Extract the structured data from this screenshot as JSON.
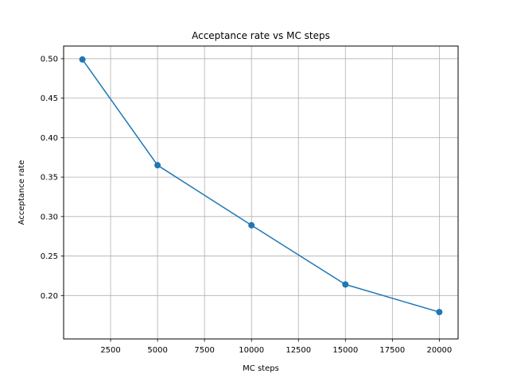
{
  "chart_data": {
    "type": "line",
    "title": "Acceptance rate vs MC steps",
    "xlabel": "MC steps",
    "ylabel": "Acceptance rate",
    "xlim": [
      0,
      21000
    ],
    "ylim": [
      0.145,
      0.516
    ],
    "x_ticks": [
      2500,
      5000,
      7500,
      10000,
      12500,
      15000,
      17500,
      20000
    ],
    "y_ticks": [
      0.2,
      0.25,
      0.3,
      0.35,
      0.4,
      0.45,
      0.5
    ],
    "x_tick_labels": [
      "2500",
      "5000",
      "7500",
      "10000",
      "12500",
      "15000",
      "17500",
      "20000"
    ],
    "y_tick_labels": [
      "0.20",
      "0.25",
      "0.30",
      "0.35",
      "0.40",
      "0.45",
      "0.50"
    ],
    "grid": true,
    "series": [
      {
        "color": "#1f77b4",
        "marker": "circle",
        "x": [
          1000,
          5000,
          10000,
          15000,
          20000
        ],
        "y": [
          0.499,
          0.365,
          0.289,
          0.214,
          0.179
        ]
      }
    ]
  }
}
